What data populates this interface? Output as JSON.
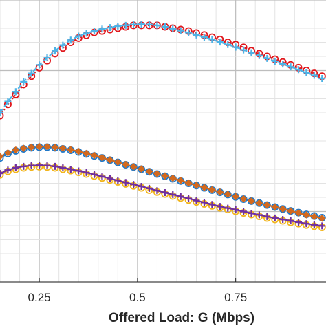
{
  "chart_data": {
    "type": "line",
    "title": "",
    "xlabel": "Offered Load: G (Mbps)",
    "ylabel": "",
    "x_ticks": [
      0.25,
      0.5,
      0.75
    ],
    "x_tick_labels": [
      "0.25",
      "0.5",
      "0.75"
    ],
    "xlim": [
      0.15,
      0.98
    ],
    "ylim": [
      0,
      1
    ],
    "grid": true,
    "legend": "none",
    "x": [
      0.15,
      0.17,
      0.19,
      0.21,
      0.23,
      0.25,
      0.27,
      0.29,
      0.31,
      0.33,
      0.35,
      0.37,
      0.39,
      0.41,
      0.43,
      0.45,
      0.47,
      0.49,
      0.51,
      0.53,
      0.55,
      0.57,
      0.59,
      0.61,
      0.63,
      0.65,
      0.67,
      0.69,
      0.71,
      0.73,
      0.75,
      0.77,
      0.79,
      0.81,
      0.83,
      0.85,
      0.87,
      0.89,
      0.91,
      0.93,
      0.95,
      0.97
    ],
    "series": [
      {
        "color": "#e0161b",
        "marker": "circle",
        "dash": "dot",
        "values": [
          0.59,
          0.63,
          0.665,
          0.7,
          0.73,
          0.76,
          0.785,
          0.81,
          0.83,
          0.85,
          0.865,
          0.875,
          0.885,
          0.89,
          0.895,
          0.9,
          0.905,
          0.91,
          0.91,
          0.91,
          0.91,
          0.905,
          0.9,
          0.895,
          0.89,
          0.883,
          0.876,
          0.868,
          0.86,
          0.85,
          0.842,
          0.832,
          0.82,
          0.81,
          0.8,
          0.79,
          0.78,
          0.77,
          0.76,
          0.75,
          0.74,
          0.73
        ]
      },
      {
        "color": "#4db3e6",
        "marker": "plus",
        "dash": "dash",
        "values": [
          0.6,
          0.64,
          0.675,
          0.71,
          0.74,
          0.77,
          0.795,
          0.82,
          0.84,
          0.858,
          0.872,
          0.882,
          0.89,
          0.897,
          0.902,
          0.907,
          0.91,
          0.913,
          0.914,
          0.913,
          0.91,
          0.905,
          0.898,
          0.891,
          0.884,
          0.876,
          0.868,
          0.86,
          0.851,
          0.842,
          0.833,
          0.823,
          0.813,
          0.803,
          0.793,
          0.783,
          0.773,
          0.763,
          0.753,
          0.743,
          0.733,
          0.722
        ]
      },
      {
        "color": "#1f78c8",
        "marker": "circle",
        "dash": "solid",
        "values": [
          0.44,
          0.455,
          0.465,
          0.472,
          0.476,
          0.478,
          0.478,
          0.476,
          0.472,
          0.467,
          0.461,
          0.454,
          0.447,
          0.44,
          0.432,
          0.424,
          0.416,
          0.408,
          0.4,
          0.391,
          0.383,
          0.375,
          0.366,
          0.358,
          0.35,
          0.342,
          0.334,
          0.326,
          0.318,
          0.31,
          0.302,
          0.294,
          0.287,
          0.28,
          0.273,
          0.266,
          0.259,
          0.252,
          0.246,
          0.24,
          0.234,
          0.228
        ]
      },
      {
        "color": "#d2691e",
        "marker": "diamond",
        "dash": "dash",
        "values": [
          0.445,
          0.458,
          0.468,
          0.474,
          0.478,
          0.48,
          0.48,
          0.478,
          0.474,
          0.469,
          0.463,
          0.456,
          0.449,
          0.441,
          0.433,
          0.425,
          0.417,
          0.409,
          0.401,
          0.392,
          0.384,
          0.376,
          0.368,
          0.36,
          0.351,
          0.343,
          0.335,
          0.327,
          0.319,
          0.311,
          0.303,
          0.295,
          0.287,
          0.28,
          0.273,
          0.266,
          0.259,
          0.252,
          0.245,
          0.238,
          0.232,
          0.226
        ]
      },
      {
        "color": "#f2b51b",
        "marker": "circle",
        "dash": "dot",
        "values": [
          0.38,
          0.392,
          0.4,
          0.405,
          0.408,
          0.409,
          0.408,
          0.405,
          0.4,
          0.395,
          0.389,
          0.383,
          0.376,
          0.369,
          0.362,
          0.355,
          0.348,
          0.341,
          0.334,
          0.326,
          0.319,
          0.312,
          0.305,
          0.298,
          0.291,
          0.284,
          0.277,
          0.27,
          0.263,
          0.257,
          0.251,
          0.245,
          0.239,
          0.233,
          0.227,
          0.222,
          0.217,
          0.212,
          0.207,
          0.202,
          0.198,
          0.194
        ]
      },
      {
        "color": "#7030a0",
        "marker": "plus",
        "dash": "solid",
        "values": [
          0.385,
          0.397,
          0.405,
          0.41,
          0.413,
          0.414,
          0.413,
          0.41,
          0.405,
          0.4,
          0.394,
          0.388,
          0.381,
          0.374,
          0.367,
          0.36,
          0.353,
          0.346,
          0.339,
          0.332,
          0.324,
          0.317,
          0.31,
          0.303,
          0.296,
          0.289,
          0.282,
          0.275,
          0.268,
          0.262,
          0.256,
          0.25,
          0.244,
          0.238,
          0.232,
          0.227,
          0.222,
          0.217,
          0.212,
          0.207,
          0.203,
          0.199
        ]
      }
    ]
  }
}
